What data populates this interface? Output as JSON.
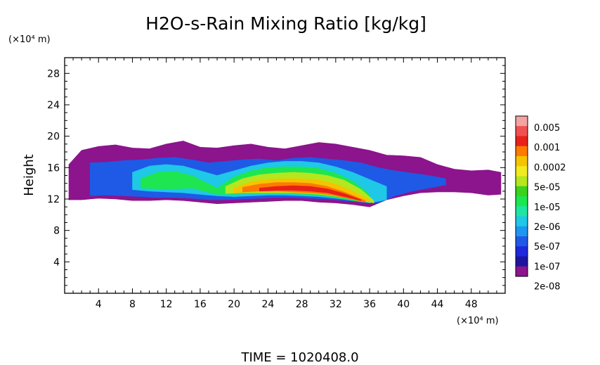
{
  "chart_data": {
    "type": "heatmap",
    "title": "H2O-s-Rain Mixing Ratio [kg/kg]",
    "ylabel": "Height",
    "y_unit": "(×10⁴ m)",
    "x_unit": "(×10⁴ m)",
    "xlim": [
      0,
      52
    ],
    "ylim": [
      0,
      30
    ],
    "x_ticks": [
      4,
      8,
      12,
      16,
      20,
      24,
      28,
      32,
      36,
      40,
      44,
      48
    ],
    "y_ticks": [
      4,
      8,
      12,
      16,
      20,
      24,
      28
    ],
    "x_tick_labels": [
      "4",
      "8",
      "12",
      "16",
      "20",
      "24",
      "28",
      "32",
      "36",
      "40",
      "44",
      "48"
    ],
    "y_tick_labels": [
      "4",
      "8",
      "12",
      "16",
      "20",
      "24",
      "28"
    ],
    "footer": "TIME = 1020408.0",
    "colorbar": {
      "labels": [
        "0.005",
        "0.001",
        "0.0002",
        "5e-05",
        "1e-05",
        "2e-06",
        "5e-07",
        "1e-07",
        "2e-08"
      ],
      "colors_top_to_bottom": [
        "#f4a3a3",
        "#f05050",
        "#e8201c",
        "#ff7a00",
        "#f5c400",
        "#f2ea20",
        "#b6e61e",
        "#3cd21e",
        "#1ee650",
        "#1ee6a0",
        "#1ec8e6",
        "#1e96f0",
        "#1e5ae6",
        "#1e28dc",
        "#1e14a0",
        "#8c148c"
      ]
    },
    "field_layers": [
      {
        "level": 0,
        "x": [
          0.5,
          2,
          4,
          6,
          8,
          10,
          12,
          14,
          16,
          18,
          20,
          22,
          24,
          26,
          28,
          30,
          32,
          34,
          36,
          38,
          40,
          42,
          44,
          46,
          48,
          50,
          51.5
        ],
        "top": [
          16.4,
          18.2,
          18.7,
          18.9,
          18.5,
          18.4,
          19.0,
          19.4,
          18.6,
          18.5,
          18.8,
          19.0,
          18.6,
          18.4,
          18.8,
          19.2,
          19.0,
          18.6,
          18.2,
          17.6,
          17.5,
          17.3,
          16.4,
          15.8,
          15.6,
          15.7,
          15.4
        ],
        "bottom": [
          11.9,
          11.9,
          12.1,
          12.0,
          11.8,
          11.8,
          11.9,
          11.8,
          11.6,
          11.4,
          11.5,
          11.6,
          11.7,
          11.8,
          11.8,
          11.6,
          11.5,
          11.3,
          11.0,
          11.9,
          12.4,
          12.8,
          12.9,
          12.9,
          12.8,
          12.5,
          12.6
        ]
      },
      {
        "level": 3,
        "x": [
          3,
          5,
          7,
          9,
          11,
          13,
          15,
          17,
          19,
          21,
          23,
          25,
          27,
          29,
          31,
          33,
          35,
          37,
          39,
          41,
          43,
          45
        ],
        "top": [
          16.6,
          16.7,
          16.9,
          17.0,
          17.2,
          17.3,
          17.0,
          16.6,
          16.8,
          17.0,
          17.1,
          16.9,
          17.2,
          17.3,
          17.1,
          16.9,
          16.6,
          16.0,
          15.6,
          15.3,
          15.0,
          14.6
        ],
        "bottom": [
          12.4,
          12.5,
          12.4,
          12.3,
          12.2,
          12.2,
          12.1,
          11.9,
          11.9,
          12.0,
          12.1,
          12.2,
          12.2,
          12.1,
          12.0,
          11.8,
          11.6,
          11.5,
          12.4,
          13.0,
          13.4,
          13.8
        ]
      },
      {
        "level": 5,
        "x": [
          8,
          10,
          12,
          14,
          16,
          18,
          20,
          22,
          24,
          26,
          28,
          30,
          32,
          34,
          36,
          38
        ],
        "top": [
          15.4,
          16.2,
          16.4,
          16.2,
          15.6,
          15.0,
          15.6,
          16.2,
          16.6,
          16.8,
          16.8,
          16.6,
          16.1,
          15.4,
          14.5,
          13.6
        ],
        "bottom": [
          13.2,
          13.0,
          12.9,
          12.8,
          12.6,
          12.4,
          12.3,
          12.4,
          12.5,
          12.5,
          12.4,
          12.3,
          12.1,
          11.8,
          11.5,
          11.9
        ]
      },
      {
        "level": 7,
        "x": [
          9,
          11,
          13,
          15,
          18,
          20,
          22,
          24,
          26,
          28,
          30,
          32,
          34,
          36
        ],
        "top": [
          14.6,
          15.4,
          15.5,
          15.0,
          13.4,
          14.8,
          15.6,
          16.0,
          16.1,
          16.1,
          15.9,
          15.3,
          14.3,
          12.6
        ],
        "bottom": [
          13.4,
          13.3,
          13.3,
          13.4,
          12.6,
          12.6,
          12.7,
          12.7,
          12.7,
          12.6,
          12.5,
          12.2,
          11.8,
          11.6
        ]
      },
      {
        "level": 9,
        "x": [
          19,
          21,
          23,
          25,
          27,
          29,
          31,
          33,
          35,
          36.5
        ],
        "top": [
          13.6,
          14.6,
          15.1,
          15.3,
          15.4,
          15.3,
          15.0,
          14.4,
          13.2,
          11.8
        ],
        "bottom": [
          12.7,
          12.8,
          12.8,
          12.8,
          12.8,
          12.7,
          12.5,
          12.2,
          11.8,
          11.5
        ]
      },
      {
        "level": 11,
        "x": [
          20,
          22,
          24,
          26,
          28,
          30,
          32,
          34,
          36
        ],
        "top": [
          13.4,
          14.2,
          14.5,
          14.6,
          14.6,
          14.4,
          13.9,
          13.0,
          11.9
        ],
        "bottom": [
          12.8,
          12.9,
          12.9,
          12.9,
          12.8,
          12.7,
          12.5,
          12.1,
          11.6
        ]
      },
      {
        "level": 12,
        "x": [
          21,
          23,
          25,
          27,
          29,
          31,
          33,
          35.5
        ],
        "top": [
          13.5,
          13.9,
          14.1,
          14.1,
          14.0,
          13.6,
          12.9,
          11.8
        ],
        "bottom": [
          12.9,
          13.0,
          13.0,
          12.9,
          12.8,
          12.6,
          12.2,
          11.6
        ]
      },
      {
        "level": 13,
        "x": [
          23,
          25,
          27,
          29,
          31,
          33,
          35
        ],
        "top": [
          13.4,
          13.6,
          13.7,
          13.6,
          13.3,
          12.7,
          11.9
        ],
        "bottom": [
          13.0,
          13.1,
          13.1,
          13.0,
          12.8,
          12.3,
          11.8
        ]
      }
    ]
  }
}
